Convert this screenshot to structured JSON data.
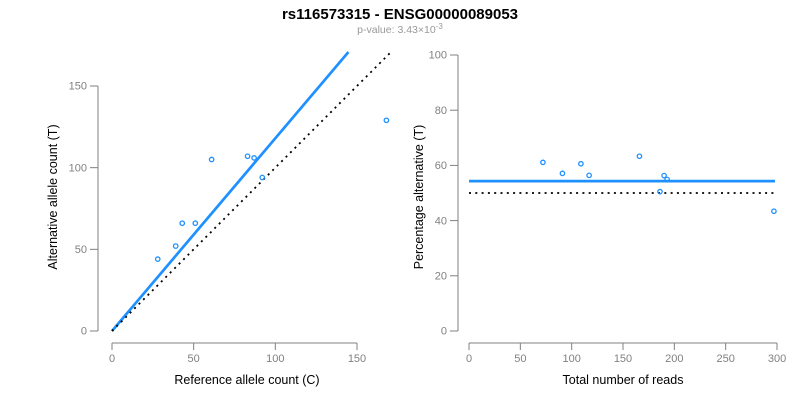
{
  "title": "rs116573315 - ENSG00000089053",
  "subtitle": {
    "text": "p-value: 3.43×10",
    "exponent": "-3"
  },
  "colors": {
    "accent": "#1E90FF",
    "dotted": "#000000",
    "axis": "#808080",
    "tick_label": "#808080",
    "subtitle": "#999999"
  },
  "chart_data": [
    {
      "type": "scatter",
      "xlabel": "Reference allele count (C)",
      "ylabel": "Alternative allele count (T)",
      "xticks": [
        0,
        50,
        100,
        150
      ],
      "yticks": [
        0,
        50,
        100,
        150
      ],
      "xlim": [
        0,
        171
      ],
      "ylim": [
        0,
        171
      ],
      "grid": false,
      "legend": false,
      "points": [
        [
          28,
          44
        ],
        [
          39,
          52
        ],
        [
          43,
          66
        ],
        [
          51,
          66
        ],
        [
          61,
          105
        ],
        [
          83,
          107
        ],
        [
          87,
          106
        ],
        [
          92,
          94
        ],
        [
          168,
          129
        ]
      ],
      "lines": [
        {
          "name": "regression-line",
          "slope": 1.18,
          "intercept": 0,
          "style": "solid",
          "color": "#1E90FF"
        },
        {
          "name": "identity-line",
          "slope": 1,
          "intercept": 0,
          "style": "dotted",
          "color": "#000000"
        }
      ]
    },
    {
      "type": "scatter",
      "xlabel": "Total number of reads",
      "ylabel": "Percentage alternative (T)",
      "xticks": [
        0,
        50,
        100,
        150,
        200,
        250,
        300
      ],
      "yticks": [
        0,
        20,
        40,
        60,
        80,
        100
      ],
      "xlim": [
        0,
        312
      ],
      "ylim": [
        0,
        101
      ],
      "grid": false,
      "legend": false,
      "points": [
        [
          72,
          61.1
        ],
        [
          91,
          57.1
        ],
        [
          109,
          60.6
        ],
        [
          117,
          56.4
        ],
        [
          166,
          63.3
        ],
        [
          190,
          56.3
        ],
        [
          193,
          54.9
        ],
        [
          186,
          50.5
        ],
        [
          297,
          43.4
        ]
      ],
      "lines": [
        {
          "name": "mean-percentage-line",
          "slope": 0,
          "intercept": 54.3,
          "x_range": [
            0,
            298
          ],
          "style": "solid",
          "color": "#1E90FF"
        },
        {
          "name": "null-percentage-line",
          "slope": 0,
          "intercept": 50,
          "x_range": [
            0,
            298
          ],
          "style": "dotted",
          "color": "#000000"
        }
      ]
    }
  ]
}
